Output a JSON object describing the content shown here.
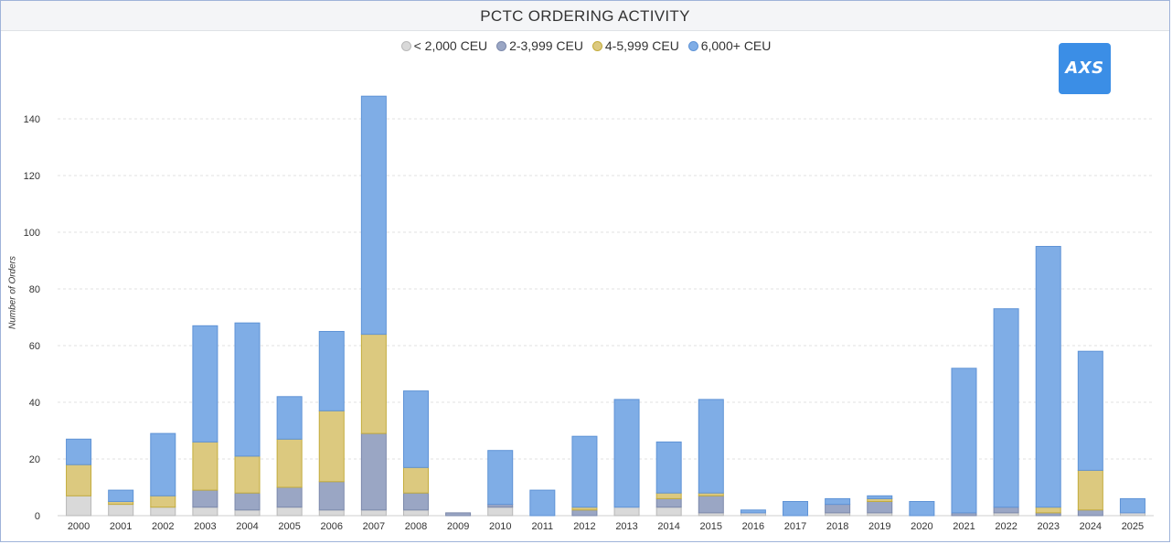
{
  "title": "PCTC ORDERING ACTIVITY",
  "logo_text": "AXS",
  "colors": {
    "lt2000": "#d9d9d9",
    "s2to4k": "#9aa6c4",
    "s4to6k": "#dcc97f",
    "s6kplus": "#7fade6"
  },
  "legend": [
    {
      "label": "< 2,000 CEU",
      "color": "#d9d9d9",
      "stroke": "#b8b8b8"
    },
    {
      "label": "2-3,999 CEU",
      "color": "#9aa6c4",
      "stroke": "#7c89ab"
    },
    {
      "label": "4-5,999 CEU",
      "color": "#dcc97f",
      "stroke": "#c3ac3c"
    },
    {
      "label": "6,000+ CEU",
      "color": "#7fade6",
      "stroke": "#5f93d6"
    }
  ],
  "chart_data": {
    "type": "bar",
    "stacked": true,
    "title": "PCTC ORDERING ACTIVITY",
    "xlabel": "",
    "ylabel": "Number of Orders",
    "ylim": [
      0,
      150
    ],
    "yticks": [
      0,
      20,
      40,
      60,
      80,
      100,
      120,
      140
    ],
    "grid": true,
    "legend_position": "top",
    "categories": [
      "2000",
      "2001",
      "2002",
      "2003",
      "2004",
      "2005",
      "2006",
      "2007",
      "2008",
      "2009",
      "2010",
      "2011",
      "2012",
      "2013",
      "2014",
      "2015",
      "2016",
      "2017",
      "2018",
      "2019",
      "2020",
      "2021",
      "2022",
      "2023",
      "2024",
      "2025"
    ],
    "series": [
      {
        "name": "< 2,000 CEU",
        "values": [
          7,
          4,
          3,
          3,
          2,
          3,
          2,
          2,
          2,
          0,
          3,
          0,
          0,
          3,
          3,
          1,
          1,
          0,
          1,
          1,
          0,
          0,
          1,
          0,
          0,
          1
        ]
      },
      {
        "name": "2-3,999 CEU",
        "values": [
          0,
          0,
          0,
          6,
          6,
          7,
          10,
          27,
          6,
          1,
          1,
          0,
          2,
          0,
          3,
          6,
          0,
          0,
          3,
          4,
          0,
          1,
          2,
          1,
          2,
          0
        ]
      },
      {
        "name": "4-5,999 CEU",
        "values": [
          11,
          1,
          4,
          17,
          13,
          17,
          25,
          35,
          9,
          0,
          0,
          0,
          1,
          0,
          2,
          1,
          0,
          0,
          0,
          1,
          0,
          0,
          0,
          2,
          14,
          0
        ]
      },
      {
        "name": "6,000+ CEU",
        "values": [
          9,
          4,
          22,
          41,
          47,
          15,
          28,
          84,
          27,
          0,
          19,
          9,
          25,
          38,
          18,
          33,
          1,
          5,
          2,
          1,
          5,
          51,
          70,
          92,
          42,
          5
        ]
      }
    ]
  }
}
